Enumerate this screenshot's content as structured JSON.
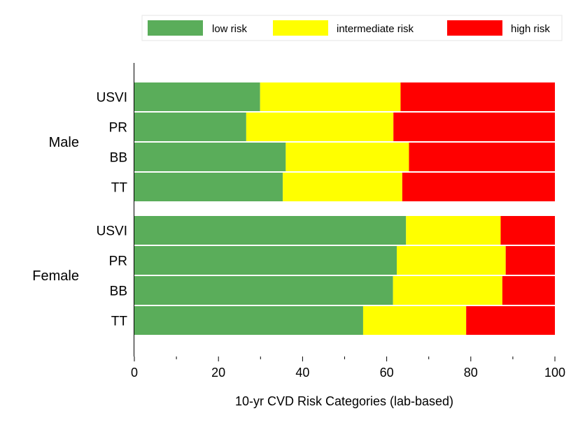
{
  "chart_data": {
    "type": "bar",
    "orientation": "horizontal",
    "stacked": true,
    "xlabel": "10-yr CVD Risk Categories (lab-based)",
    "xlim": [
      0,
      100
    ],
    "x_ticks": [
      0,
      20,
      40,
      60,
      80,
      100
    ],
    "grid": false,
    "legend_position": "top",
    "groups": [
      {
        "name": "Male",
        "categories": [
          "USVI",
          "PR",
          "BB",
          "TT"
        ]
      },
      {
        "name": "Female",
        "categories": [
          "USVI",
          "PR",
          "BB",
          "TT"
        ]
      }
    ],
    "series": [
      {
        "name": "low risk",
        "color": "#5aad5a",
        "values": [
          [
            29.9,
            26.6,
            36.0,
            35.3
          ],
          [
            64.6,
            62.4,
            61.5,
            54.4
          ]
        ]
      },
      {
        "name": "intermediate risk",
        "color": "#ffff00",
        "values": [
          [
            33.4,
            35.0,
            29.3,
            28.4
          ],
          [
            22.5,
            25.9,
            26.0,
            24.5
          ]
        ]
      },
      {
        "name": "high risk",
        "color": "#ff0000",
        "values": [
          [
            36.7,
            38.4,
            34.7,
            36.3
          ],
          [
            12.9,
            11.7,
            12.5,
            21.1
          ]
        ]
      }
    ]
  }
}
